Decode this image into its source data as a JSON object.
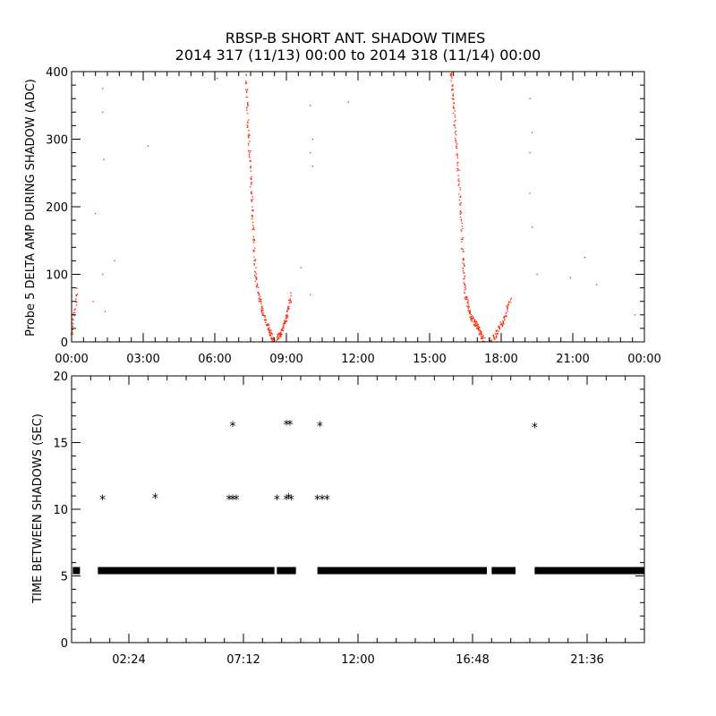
{
  "title_line1": "RBSP-B SHORT ANT. SHADOW TIMES",
  "title_line2": "2014 317 (11/13) 00:00 to 2014 318 (11/14) 00:00",
  "colors": {
    "top_points": "#ff2200",
    "bottom_points": "#000000",
    "axes": "#000000"
  },
  "chart_data": [
    {
      "type": "scatter",
      "ylabel": "Probe 5 DELTA AMP DURING SHADOW (ADC)",
      "xlabel": "",
      "x_unit": "hours",
      "xlim": [
        0,
        24
      ],
      "ylim": [
        0,
        400
      ],
      "x_ticks": [
        0,
        3,
        6,
        9,
        12,
        15,
        18,
        21,
        24
      ],
      "x_tick_labels": [
        "00:00",
        "03:00",
        "06:00",
        "09:00",
        "12:00",
        "15:00",
        "18:00",
        "21:00",
        "00:00"
      ],
      "y_ticks": [
        0,
        100,
        200,
        300,
        400
      ],
      "y_tick_labels": [
        "0",
        "100",
        "200",
        "300",
        "400"
      ],
      "grid": false,
      "series": [
        {
          "color": "#ff2200",
          "segments": [
            {
              "x": [
                0.0,
                0.25
              ],
              "y": [
                10,
                80
              ]
            },
            {
              "x": [
                7.3,
                7.4,
                7.5,
                7.6,
                7.7,
                7.9,
                8.1,
                8.3,
                8.45
              ],
              "y": [
                400,
                320,
                250,
                180,
                100,
                60,
                35,
                15,
                0
              ]
            },
            {
              "x": [
                8.6,
                8.8,
                9.0,
                9.2
              ],
              "y": [
                5,
                15,
                35,
                70
              ]
            },
            {
              "x": [
                15.9,
                16.0,
                16.15,
                16.3,
                16.4,
                16.5,
                16.7,
                16.9,
                17.1,
                17.3
              ],
              "y": [
                400,
                350,
                280,
                200,
                120,
                70,
                40,
                30,
                15,
                0
              ]
            },
            {
              "x": [
                17.5,
                17.8,
                18.1,
                18.4
              ],
              "y": [
                0,
                12,
                30,
                65
              ]
            }
          ],
          "points": [
            [
              0.9,
              60
            ],
            [
              1.3,
              375
            ],
            [
              1.3,
              340
            ],
            [
              1.35,
              270
            ],
            [
              1.3,
              100
            ],
            [
              1.4,
              45
            ],
            [
              1.8,
              120
            ],
            [
              1.0,
              190
            ],
            [
              3.2,
              290
            ],
            [
              6.1,
              390
            ],
            [
              9.6,
              110
            ],
            [
              10.0,
              350
            ],
            [
              10.1,
              300
            ],
            [
              10.0,
              280
            ],
            [
              10.1,
              260
            ],
            [
              10.0,
              70
            ],
            [
              11.6,
              355
            ],
            [
              19.2,
              360
            ],
            [
              19.3,
              310
            ],
            [
              19.2,
              280
            ],
            [
              19.2,
              220
            ],
            [
              19.3,
              170
            ],
            [
              19.5,
              100
            ],
            [
              20.9,
              95
            ],
            [
              21.5,
              125
            ],
            [
              22.0,
              85
            ],
            [
              23.6,
              40
            ]
          ]
        }
      ]
    },
    {
      "type": "scatter",
      "ylabel": "TIME BETWEEN SHADOWS (SEC)",
      "xlabel": "",
      "x_unit": "hours",
      "xlim": [
        0,
        24
      ],
      "ylim": [
        0,
        20
      ],
      "x_ticks": [
        2.4,
        7.2,
        12.0,
        16.8,
        21.6
      ],
      "x_tick_labels": [
        "02:24",
        "07:12",
        "12:00",
        "16:48",
        "21:36"
      ],
      "y_ticks": [
        0,
        5,
        10,
        15,
        20
      ],
      "y_tick_labels": [
        "0",
        "5",
        "10",
        "15",
        "20"
      ],
      "grid": false,
      "marker": "*",
      "series": [
        {
          "color": "#000000",
          "baseline_value": 5.4,
          "baseline_ranges": [
            [
              0.05,
              0.35
            ],
            [
              1.1,
              8.5
            ],
            [
              8.6,
              9.4
            ],
            [
              10.3,
              17.4
            ],
            [
              17.6,
              18.6
            ],
            [
              19.4,
              24.0
            ]
          ],
          "points": [
            [
              1.3,
              10.8
            ],
            [
              3.5,
              10.9
            ],
            [
              6.6,
              10.8
            ],
            [
              6.75,
              10.8
            ],
            [
              6.9,
              10.8
            ],
            [
              6.75,
              16.3
            ],
            [
              8.6,
              10.8
            ],
            [
              9.0,
              10.8
            ],
            [
              9.1,
              10.9
            ],
            [
              9.2,
              10.8
            ],
            [
              9.0,
              16.4
            ],
            [
              9.15,
              16.4
            ],
            [
              10.3,
              10.8
            ],
            [
              10.5,
              10.8
            ],
            [
              10.7,
              10.8
            ],
            [
              10.4,
              16.3
            ],
            [
              19.4,
              16.2
            ]
          ]
        }
      ]
    }
  ]
}
